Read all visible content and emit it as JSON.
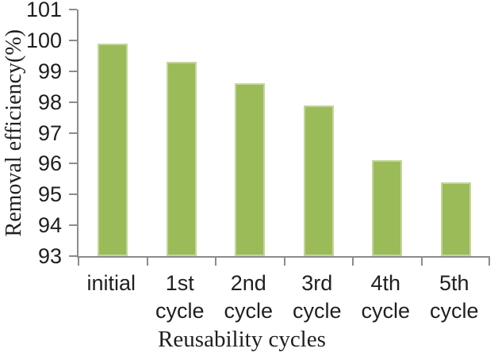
{
  "chart_data": {
    "type": "bar",
    "title": "",
    "xlabel": "Reusability cycles",
    "ylabel": "Removal efficiency(%)",
    "categories": [
      "initial",
      "1st cycle",
      "2nd cycle",
      "3rd cycle",
      "4th cycle",
      "5th cycle"
    ],
    "values": [
      99.9,
      99.3,
      98.6,
      97.9,
      96.1,
      95.4
    ],
    "ylim": [
      93,
      101
    ],
    "yticks": [
      93,
      94,
      95,
      96,
      97,
      98,
      99,
      100,
      101
    ],
    "grid": false,
    "legend": "none",
    "bar_color": "#9bbb59",
    "bar_border_color": "#c3d69b",
    "axis_color": "#8c8c8c",
    "text_color": "#1f1f1f"
  }
}
